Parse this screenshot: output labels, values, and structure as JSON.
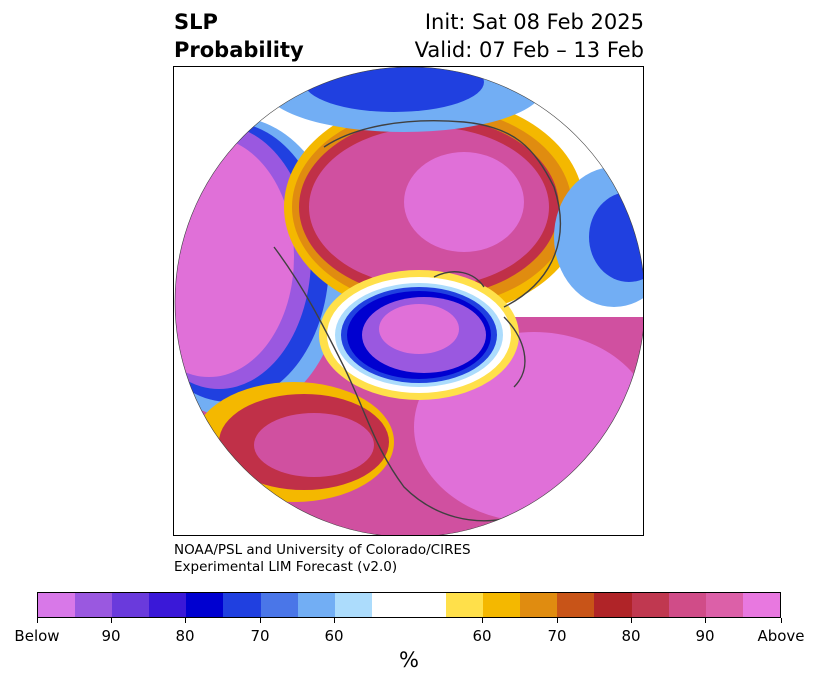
{
  "title": {
    "left_line1": "SLP",
    "left_line2": "Probability",
    "right_line1": "Init: Sat 08 Feb 2025",
    "right_line2": "Valid: 07 Feb – 13 Feb"
  },
  "credit": {
    "line1": "NOAA/PSL and University of Colorado/CIRES",
    "line2": "Experimental LIM Forecast (v2.0)"
  },
  "colorbar": {
    "colors": [
      "#d878e8",
      "#9a58e0",
      "#6a3adc",
      "#3a18d8",
      "#0000d0",
      "#2040e0",
      "#4a76e8",
      "#72aef4",
      "#acdcfc",
      "#ffffff",
      "#ffffff",
      "#ffe04a",
      "#f4b800",
      "#e08c10",
      "#c85418",
      "#b02428",
      "#c03850",
      "#d04c88",
      "#dc60a8",
      "#e878e0"
    ],
    "tick_labels": [
      "Below",
      "90",
      "80",
      "70",
      "60",
      "60",
      "70",
      "80",
      "90",
      "Above"
    ],
    "unit": "%"
  },
  "map": {
    "projection": "north polar stereographic",
    "palette": {
      "pink": "#e070d8",
      "magenta": "#d050a0",
      "red": "#c03048",
      "orange": "#e08c10",
      "yellow": "#f4b800",
      "light_yellow": "#ffe04a",
      "light_blue": "#acdcfc",
      "sky_blue": "#72aef4",
      "blue": "#2040e0",
      "navy": "#0000d0",
      "purple": "#6a3adc",
      "violet": "#9a58e0",
      "border": "#404040"
    }
  }
}
